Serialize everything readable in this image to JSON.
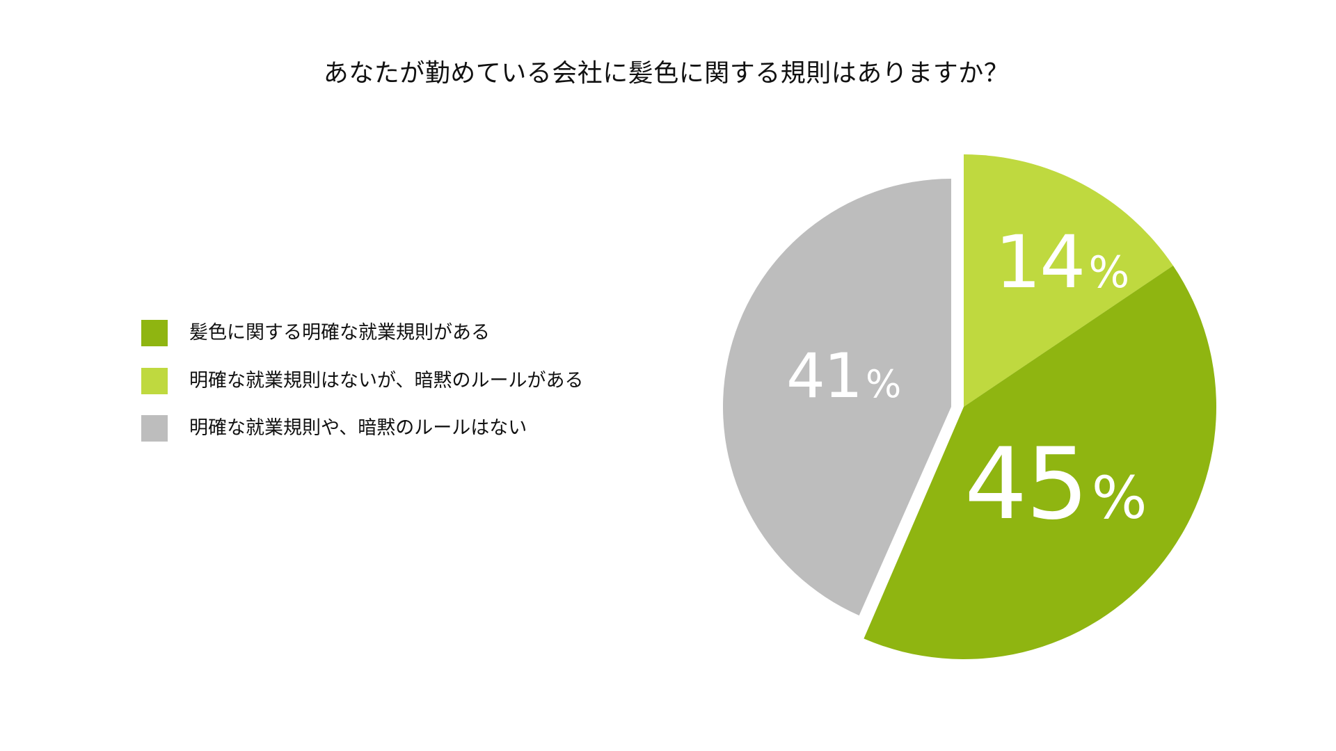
{
  "title": "あなたが勤めている会社に髪色に関する規則はありますか？",
  "legend": {
    "items": [
      {
        "label": "髪色に関する明確な就業規則がある",
        "color": "#8fb511"
      },
      {
        "label": "明確な就業規則はないが、暗黙のルールがある",
        "color": "#bfd93f"
      },
      {
        "label": "明確な就業規則や、暗黙のルールはない",
        "color": "#bdbdbd"
      }
    ]
  },
  "slices": [
    {
      "key": "implicit",
      "value": "14",
      "unit": "%",
      "color": "#bfd93f"
    },
    {
      "key": "explicit",
      "value": "45",
      "unit": "%",
      "color": "#8fb511"
    },
    {
      "key": "none",
      "value": "41",
      "unit": "%",
      "color": "#bdbdbd"
    }
  ],
  "chart_data": {
    "type": "pie",
    "title": "あなたが勤めている会社に髪色に関する規則はありますか？",
    "categories": [
      "髪色に関する明確な就業規則がある",
      "明確な就業規則はないが、暗黙のルールがある",
      "明確な就業規則や、暗黙のルールはない"
    ],
    "values": [
      45,
      14,
      41
    ],
    "unit": "%",
    "colors": [
      "#8fb511",
      "#bfd93f",
      "#bdbdbd"
    ],
    "legend_position": "left",
    "exploded": [
      "明確な就業規則や、暗黙のルールはない"
    ]
  }
}
